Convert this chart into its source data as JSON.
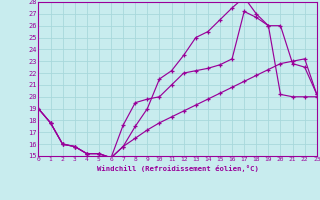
{
  "xlabel": "Windchill (Refroidissement éolien,°C)",
  "bg_color": "#c8ecee",
  "grid_color": "#a8d8dc",
  "line_color": "#990099",
  "xlim": [
    0,
    23
  ],
  "ylim": [
    15,
    28
  ],
  "xticks": [
    0,
    1,
    2,
    3,
    4,
    5,
    6,
    7,
    8,
    9,
    10,
    11,
    12,
    13,
    14,
    15,
    16,
    17,
    18,
    19,
    20,
    21,
    22,
    23
  ],
  "yticks": [
    15,
    16,
    17,
    18,
    19,
    20,
    21,
    22,
    23,
    24,
    25,
    26,
    27,
    28
  ],
  "line1_x": [
    0,
    1,
    2,
    3,
    4,
    5,
    6,
    7,
    8,
    9,
    10,
    11,
    12,
    13,
    14,
    15,
    16,
    17,
    18,
    19,
    20,
    21,
    22,
    23
  ],
  "line1_y": [
    19,
    17.8,
    16.0,
    15.8,
    15.2,
    15.2,
    14.85,
    17.6,
    19.5,
    19.8,
    20.0,
    21.0,
    22.0,
    22.2,
    22.4,
    22.7,
    23.2,
    27.2,
    26.7,
    26.0,
    20.2,
    20.0,
    20.0,
    20.0
  ],
  "line2_x": [
    0,
    1,
    2,
    3,
    4,
    5,
    6,
    7,
    8,
    9,
    10,
    11,
    12,
    13,
    14,
    15,
    16,
    17,
    18,
    19,
    20,
    21,
    22,
    23
  ],
  "line2_y": [
    19,
    17.8,
    16.0,
    15.8,
    15.2,
    15.2,
    14.85,
    15.8,
    17.5,
    19.0,
    21.5,
    22.2,
    23.5,
    25.0,
    25.5,
    26.5,
    27.5,
    28.4,
    27.0,
    26.0,
    26.0,
    22.8,
    22.5,
    20.2
  ],
  "line3_x": [
    0,
    1,
    2,
    3,
    4,
    5,
    6,
    7,
    8,
    9,
    10,
    11,
    12,
    13,
    14,
    15,
    16,
    17,
    18,
    19,
    20,
    21,
    22,
    23
  ],
  "line3_y": [
    19,
    17.8,
    16.0,
    15.8,
    15.2,
    15.2,
    14.85,
    15.8,
    16.5,
    17.2,
    17.8,
    18.3,
    18.8,
    19.3,
    19.8,
    20.3,
    20.8,
    21.3,
    21.8,
    22.3,
    22.8,
    23.0,
    23.2,
    20.2
  ]
}
